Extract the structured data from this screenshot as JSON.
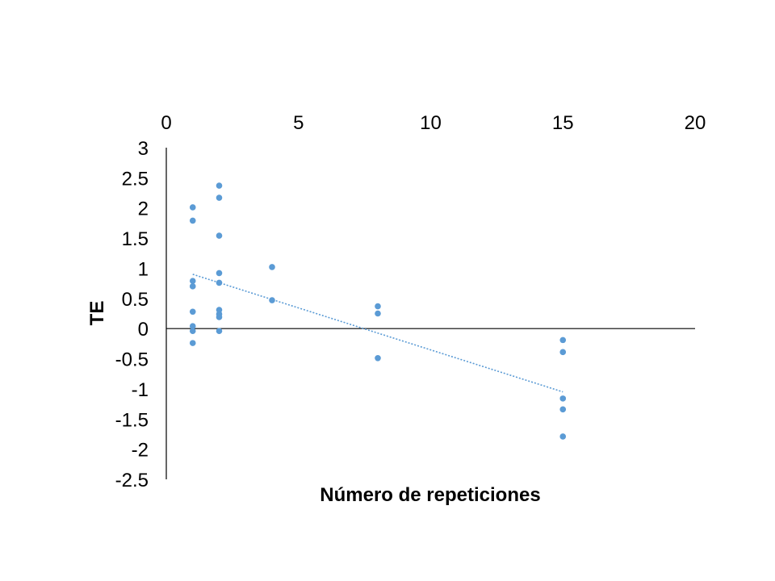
{
  "chart_data": {
    "type": "scatter",
    "title": "",
    "xlabel": "Número de repeticiones",
    "ylabel": "TE",
    "xlim": [
      0,
      20
    ],
    "ylim": [
      -2.5,
      3
    ],
    "x_ticks": [
      "0",
      "5",
      "10",
      "15",
      "20"
    ],
    "y_ticks": [
      "3",
      "2.5",
      "2",
      "1.5",
      "1",
      "0.5",
      "0",
      "-0.5",
      "-1",
      "-1.5",
      "-2",
      "-2.5"
    ],
    "x_tick_position": "top",
    "grid": false,
    "legend": null,
    "marker_color": "#5B9BD5",
    "series": [
      {
        "name": "TE",
        "points": [
          {
            "x": 1,
            "y": 2.01
          },
          {
            "x": 1,
            "y": 1.79
          },
          {
            "x": 1,
            "y": 0.79
          },
          {
            "x": 1,
            "y": 0.7
          },
          {
            "x": 1,
            "y": 0.28
          },
          {
            "x": 1,
            "y": 0.04
          },
          {
            "x": 1,
            "y": -0.04
          },
          {
            "x": 1,
            "y": -0.24
          },
          {
            "x": 2,
            "y": 2.37
          },
          {
            "x": 2,
            "y": 2.17
          },
          {
            "x": 2,
            "y": 1.54
          },
          {
            "x": 2,
            "y": 0.92
          },
          {
            "x": 2,
            "y": 0.76
          },
          {
            "x": 2,
            "y": 0.31
          },
          {
            "x": 2,
            "y": 0.24
          },
          {
            "x": 2,
            "y": 0.19
          },
          {
            "x": 2,
            "y": -0.04
          },
          {
            "x": 4,
            "y": 1.02
          },
          {
            "x": 4,
            "y": 0.47
          },
          {
            "x": 8,
            "y": 0.37
          },
          {
            "x": 8,
            "y": 0.25
          },
          {
            "x": 8,
            "y": -0.49
          },
          {
            "x": 15,
            "y": -0.19
          },
          {
            "x": 15,
            "y": -0.39
          },
          {
            "x": 15,
            "y": -1.16
          },
          {
            "x": 15,
            "y": -1.34
          },
          {
            "x": 15,
            "y": -1.79
          }
        ]
      }
    ],
    "trendline": {
      "type": "linear",
      "style": "dotted",
      "color": "#5B9BD5",
      "x_start": 1,
      "y_start": 0.9,
      "x_end": 15,
      "y_end": -1.05
    }
  }
}
